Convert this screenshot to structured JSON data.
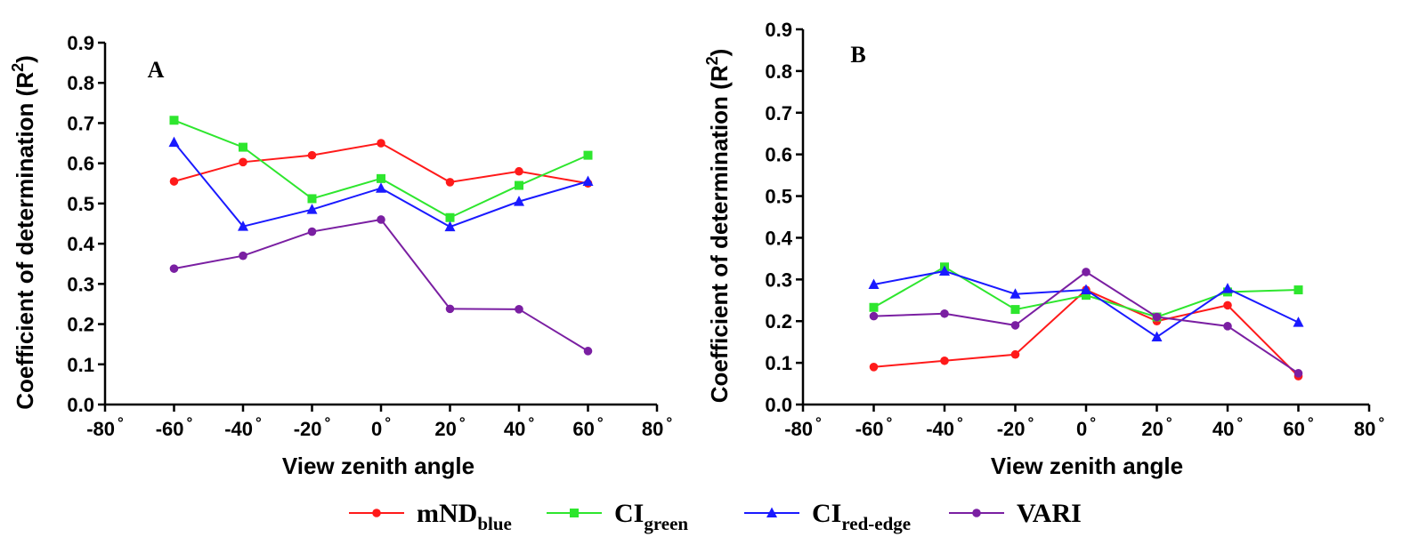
{
  "legend": [
    {
      "name": "mND",
      "sub": "blue",
      "color": "#ff1a1a",
      "marker": "circle"
    },
    {
      "name": "CI",
      "sub": "green",
      "color": "#2ee62e",
      "marker": "square"
    },
    {
      "name": "CI",
      "sub": "red-edge",
      "color": "#1a1aff",
      "marker": "triangle"
    },
    {
      "name": "VARI",
      "sub": "",
      "color": "#7a1fa2",
      "marker": "circle"
    }
  ],
  "chart_data": [
    {
      "type": "line",
      "panel_label": "A",
      "xlabel": "View zenith angle",
      "ylabel": "Coefficient of determination (R",
      "ylabel_sup": "2",
      "ylabel_end": ")",
      "xlim": [
        -80,
        80
      ],
      "ylim": [
        0,
        0.9
      ],
      "x_ticks": [
        -80,
        -60,
        -40,
        -20,
        0,
        20,
        40,
        60,
        80
      ],
      "x_tick_labels": [
        "-80",
        "-60",
        "-40",
        "-20",
        "0",
        "20",
        "40",
        "60",
        "80"
      ],
      "degree_symbol": "°",
      "y_ticks": [
        0,
        0.1,
        0.2,
        0.3,
        0.4,
        0.5,
        0.6,
        0.7,
        0.8,
        0.9
      ],
      "y_tick_labels": [
        "0.0",
        "0.1",
        "0.2",
        "0.3",
        "0.4",
        "0.5",
        "0.6",
        "0.7",
        "0.8",
        "0.9"
      ],
      "x": [
        -60,
        -40,
        -20,
        0,
        20,
        40,
        60
      ],
      "series": [
        {
          "name": "mNDblue",
          "values": [
            0.555,
            0.603,
            0.62,
            0.65,
            0.553,
            0.58,
            0.55
          ]
        },
        {
          "name": "CIgreen",
          "values": [
            0.707,
            0.64,
            0.512,
            0.562,
            0.465,
            0.545,
            0.62
          ]
        },
        {
          "name": "CIred-edge",
          "values": [
            0.652,
            0.443,
            0.485,
            0.538,
            0.442,
            0.505,
            0.555
          ]
        },
        {
          "name": "VARI",
          "values": [
            0.338,
            0.37,
            0.43,
            0.46,
            0.238,
            0.237,
            0.133
          ]
        }
      ]
    },
    {
      "type": "line",
      "panel_label": "B",
      "xlabel": "View zenith angle",
      "ylabel": "Coefficient of determination (R",
      "ylabel_sup": "2",
      "ylabel_end": ")",
      "xlim": [
        -80,
        80
      ],
      "ylim": [
        0,
        0.9
      ],
      "x_ticks": [
        -80,
        -60,
        -40,
        -20,
        0,
        20,
        40,
        60,
        80
      ],
      "x_tick_labels": [
        "-80",
        "-60",
        "-40",
        "-20",
        "0",
        "20",
        "40",
        "60",
        "80"
      ],
      "degree_symbol": "°",
      "y_ticks": [
        0,
        0.1,
        0.2,
        0.3,
        0.4,
        0.5,
        0.6,
        0.7,
        0.8,
        0.9
      ],
      "y_tick_labels": [
        "0.0",
        "0.1",
        "0.2",
        "0.3",
        "0.4",
        "0.5",
        "0.6",
        "0.7",
        "0.8",
        "0.9"
      ],
      "x": [
        -60,
        -40,
        -20,
        0,
        20,
        40,
        60
      ],
      "series": [
        {
          "name": "mNDblue",
          "values": [
            0.09,
            0.105,
            0.12,
            0.275,
            0.2,
            0.238,
            0.068
          ]
        },
        {
          "name": "CIgreen",
          "values": [
            0.233,
            0.33,
            0.228,
            0.262,
            0.21,
            0.27,
            0.275
          ]
        },
        {
          "name": "CIred-edge",
          "values": [
            0.288,
            0.32,
            0.265,
            0.275,
            0.162,
            0.278,
            0.197
          ]
        },
        {
          "name": "VARI",
          "values": [
            0.212,
            0.218,
            0.19,
            0.318,
            0.21,
            0.188,
            0.075
          ]
        }
      ]
    }
  ]
}
